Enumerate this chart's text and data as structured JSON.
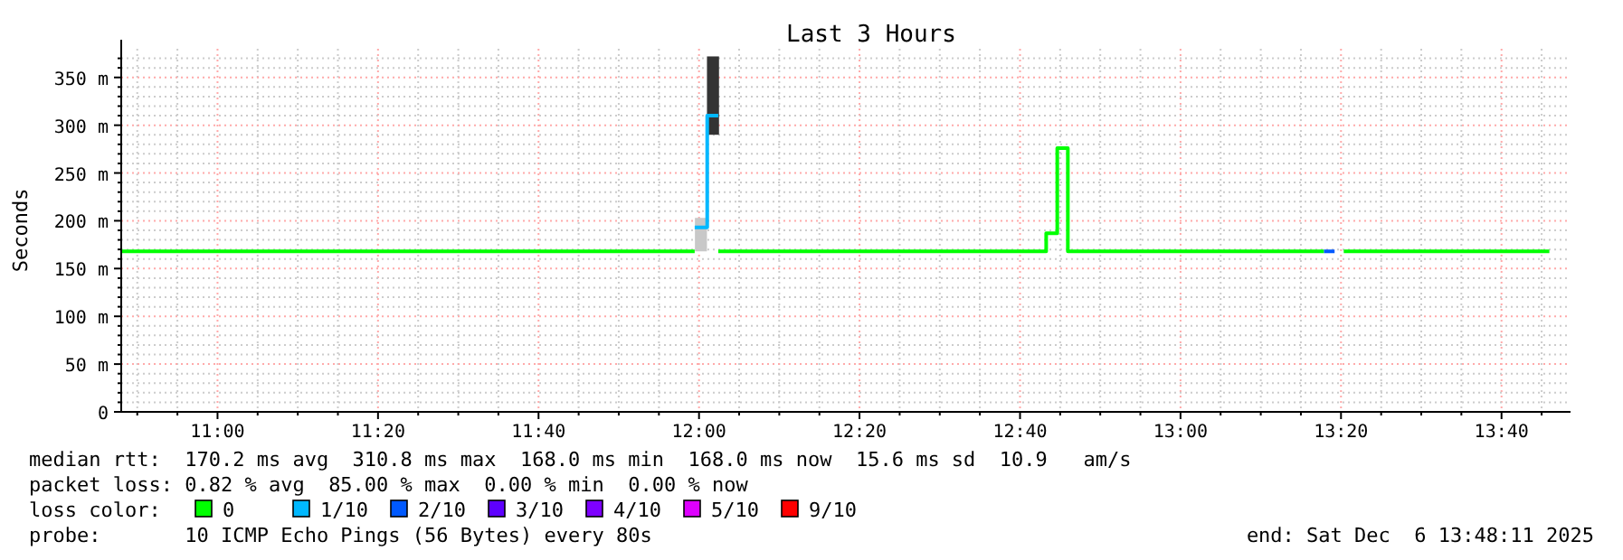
{
  "chart_data": {
    "type": "line",
    "title": "Last 3 Hours",
    "ylabel": "Seconds",
    "legend_title": "loss color:",
    "legend": "bottom",
    "grid": true,
    "xlim": [
      10.8,
      13.81
    ],
    "ylim": [
      0,
      380
    ],
    "xticks": [
      {
        "value": 10.8333,
        "label": null
      },
      {
        "value": 10.9167,
        "label": null
      },
      {
        "value": 11,
        "label": "11:00"
      },
      {
        "value": 11.0833,
        "label": null
      },
      {
        "value": 11.1667,
        "label": null
      },
      {
        "value": 11.25,
        "label": null
      },
      {
        "value": 11.3333,
        "label": "11:20"
      },
      {
        "value": 11.4167,
        "label": null
      },
      {
        "value": 11.5,
        "label": null
      },
      {
        "value": 11.5833,
        "label": null
      },
      {
        "value": 11.6667,
        "label": "11:40"
      },
      {
        "value": 11.75,
        "label": null
      },
      {
        "value": 11.8333,
        "label": null
      },
      {
        "value": 11.9167,
        "label": null
      },
      {
        "value": 12,
        "label": "12:00"
      },
      {
        "value": 12.0833,
        "label": null
      },
      {
        "value": 12.1667,
        "label": null
      },
      {
        "value": 12.25,
        "label": null
      },
      {
        "value": 12.3333,
        "label": "12:20"
      },
      {
        "value": 12.4167,
        "label": null
      },
      {
        "value": 12.5,
        "label": null
      },
      {
        "value": 12.5833,
        "label": null
      },
      {
        "value": 12.6667,
        "label": "12:40"
      },
      {
        "value": 12.75,
        "label": null
      },
      {
        "value": 12.8333,
        "label": null
      },
      {
        "value": 12.9167,
        "label": null
      },
      {
        "value": 13,
        "label": "13:00"
      },
      {
        "value": 13.0833,
        "label": null
      },
      {
        "value": 13.1667,
        "label": null
      },
      {
        "value": 13.25,
        "label": null
      },
      {
        "value": 13.3333,
        "label": "13:20"
      },
      {
        "value": 13.4167,
        "label": null
      },
      {
        "value": 13.5,
        "label": null
      },
      {
        "value": 13.5833,
        "label": null
      },
      {
        "value": 13.6667,
        "label": "13:40"
      },
      {
        "value": 13.75,
        "label": null
      }
    ],
    "yticks": [
      0,
      {
        "value": 10,
        "label": null
      },
      {
        "value": 20,
        "label": null
      },
      {
        "value": 30,
        "label": null
      },
      {
        "value": 40,
        "label": null
      },
      {
        "value": 50,
        "label": "50 m"
      },
      {
        "value": 60,
        "label": null
      },
      {
        "value": 70,
        "label": null
      },
      {
        "value": 80,
        "label": null
      },
      {
        "value": 90,
        "label": null
      },
      {
        "value": 100,
        "label": "100 m"
      },
      {
        "value": 110,
        "label": null
      },
      {
        "value": 120,
        "label": null
      },
      {
        "value": 130,
        "label": null
      },
      {
        "value": 140,
        "label": null
      },
      {
        "value": 150,
        "label": "150 m"
      },
      {
        "value": 160,
        "label": null
      },
      {
        "value": 170,
        "label": null
      },
      {
        "value": 180,
        "label": null
      },
      {
        "value": 190,
        "label": null
      },
      {
        "value": 200,
        "label": "200 m"
      },
      {
        "value": 210,
        "label": null
      },
      {
        "value": 220,
        "label": null
      },
      {
        "value": 230,
        "label": null
      },
      {
        "value": 240,
        "label": null
      },
      {
        "value": 250,
        "label": "250 m"
      },
      {
        "value": 260,
        "label": null
      },
      {
        "value": 270,
        "label": null
      },
      {
        "value": 280,
        "label": null
      },
      {
        "value": 290,
        "label": null
      },
      {
        "value": 300,
        "label": "300 m"
      },
      {
        "value": 310,
        "label": null
      },
      {
        "value": 320,
        "label": null
      },
      {
        "value": 330,
        "label": null
      },
      {
        "value": 340,
        "label": null
      },
      {
        "value": 350,
        "label": "350 m"
      },
      {
        "value": 360,
        "label": null
      },
      {
        "value": 370,
        "label": null
      }
    ],
    "series": [
      {
        "type": "bar",
        "x": [
          12.004,
          12.029
        ],
        "base": [
          168,
          290
        ],
        "values": [
          35,
          82
        ],
        "colors": [
          "#c8c8c8",
          "#333333"
        ]
      },
      {
        "name": "0",
        "color": "#00ff00",
        "x": [
          10.8,
          11.991,
          12.015,
          12.04,
          12.721,
          12.721,
          12.744,
          12.744,
          12.766,
          12.766,
          13.298,
          13.32,
          13.339,
          13.766
        ],
        "values": [
          168,
          168,
          null,
          168,
          168,
          187,
          187,
          276,
          276,
          168,
          168,
          null,
          168,
          168
        ]
      },
      {
        "name": "1/10",
        "color": "#00b8ff",
        "x": [
          11.991,
          12.017,
          12.017,
          12.04
        ],
        "values": [
          193,
          193,
          310,
          310
        ]
      },
      {
        "name": "2/10",
        "color": "#0059ff",
        "x": [
          13.298,
          13.32
        ],
        "values": [
          168,
          168
        ]
      },
      {
        "name": "3/10",
        "color": "#5e00ff"
      },
      {
        "name": "4/10",
        "color": "#7e00ff"
      },
      {
        "name": "5/10",
        "color": "#dd00ff"
      },
      {
        "name": "9/10",
        "color": "#ff0000"
      }
    ],
    "annotations": [
      "median rtt:  170.2 ms avg  310.8 ms max  168.0 ms min  168.0 ms now  15.6 ms sd  10.9   am/s",
      "packet loss: 0.82 % avg  85.00 % max  0.00 % min  0.00 % now",
      "probe:       10 ICMP Echo Pings (56 Bytes) every 80s",
      "end: Sat Dec  6 13:48:11 2025"
    ]
  }
}
